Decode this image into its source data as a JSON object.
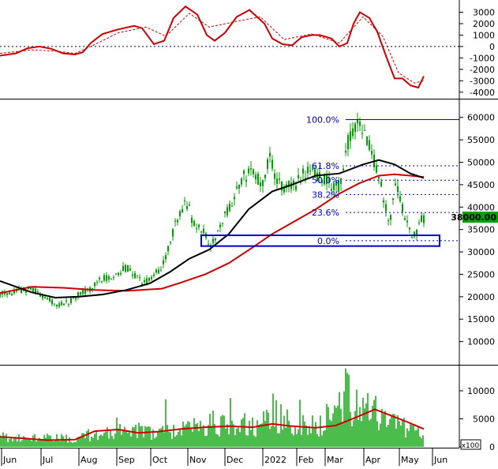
{
  "chart_data": [
    {
      "panel": "oscillator",
      "type": "line",
      "y_ticks": [
        3000,
        2000,
        1000,
        0,
        -1000,
        -2000,
        -3000,
        -4000
      ],
      "y_tick_labels": [
        "3000",
        "2000",
        "1000",
        "0",
        "-1000",
        "-2000",
        "-3000",
        "-4000"
      ],
      "ylim": [
        -4500,
        4000
      ],
      "zero_line": 0,
      "colors": {
        "main": "#cc0000",
        "signal": "#cc0000",
        "zero": "#000080"
      },
      "series": [
        {
          "role": "main",
          "style": "solid",
          "points": [
            [
              0,
              -800
            ],
            [
              20,
              -600
            ],
            [
              35,
              -150
            ],
            [
              50,
              0
            ],
            [
              65,
              -200
            ],
            [
              80,
              -600
            ],
            [
              95,
              -700
            ],
            [
              105,
              -500
            ],
            [
              115,
              300
            ],
            [
              130,
              1100
            ],
            [
              150,
              1500
            ],
            [
              170,
              1800
            ],
            [
              180,
              1600
            ],
            [
              195,
              200
            ],
            [
              208,
              500
            ],
            [
              220,
              2500
            ],
            [
              235,
              3500
            ],
            [
              250,
              2800
            ],
            [
              262,
              1000
            ],
            [
              272,
              500
            ],
            [
              285,
              1200
            ],
            [
              300,
              2600
            ],
            [
              316,
              3200
            ],
            [
              335,
              2000
            ],
            [
              345,
              700
            ],
            [
              358,
              200
            ],
            [
              370,
              100
            ],
            [
              382,
              800
            ],
            [
              395,
              1000
            ],
            [
              405,
              1000
            ],
            [
              420,
              700
            ],
            [
              430,
              0
            ],
            [
              440,
              300
            ],
            [
              448,
              2000
            ],
            [
              456,
              3000
            ],
            [
              468,
              2500
            ],
            [
              478,
              1300
            ],
            [
              490,
              -1000
            ],
            [
              500,
              -2800
            ],
            [
              510,
              -2800
            ],
            [
              520,
              -3400
            ],
            [
              530,
              -3600
            ],
            [
              537,
              -2600
            ]
          ]
        },
        {
          "role": "signal",
          "style": "dashed",
          "points": [
            [
              0,
              -600
            ],
            [
              40,
              -300
            ],
            [
              70,
              -400
            ],
            [
              95,
              -600
            ],
            [
              115,
              0
            ],
            [
              150,
              1200
            ],
            [
              185,
              1700
            ],
            [
              210,
              900
            ],
            [
              240,
              2900
            ],
            [
              265,
              1700
            ],
            [
              300,
              2200
            ],
            [
              330,
              2600
            ],
            [
              360,
              600
            ],
            [
              395,
              1100
            ],
            [
              430,
              300
            ],
            [
              460,
              2600
            ],
            [
              485,
              900
            ],
            [
              505,
              -2300
            ],
            [
              525,
              -3200
            ],
            [
              537,
              -3000
            ]
          ]
        }
      ]
    },
    {
      "panel": "price",
      "type": "candlestick",
      "y_ticks": [
        60000,
        55000,
        50000,
        45000,
        40000,
        35000,
        30000,
        25000,
        20000,
        15000,
        10000
      ],
      "y_tick_labels": [
        "60000",
        "55000",
        "50000",
        "45000",
        "40000",
        "35000",
        "30000",
        "25000",
        "20000",
        "15000",
        "10000"
      ],
      "ylim": [
        5000,
        64000
      ],
      "last_price_label": "38000.00",
      "colors": {
        "candle": "#00a000",
        "ma_fast": "#000000",
        "ma_slow": "#cc0000",
        "fib": "#0000cc",
        "box": "#0000cc",
        "last_price_bg": "#00a000"
      },
      "key_points": [
        [
          0,
          20500
        ],
        [
          20,
          21000
        ],
        [
          40,
          22000
        ],
        [
          60,
          19500
        ],
        [
          75,
          18000
        ],
        [
          90,
          19000
        ],
        [
          100,
          20500
        ],
        [
          115,
          22000
        ],
        [
          130,
          24000
        ],
        [
          145,
          25000
        ],
        [
          160,
          26500
        ],
        [
          170,
          25000
        ],
        [
          180,
          23000
        ],
        [
          195,
          24500
        ],
        [
          205,
          27000
        ],
        [
          212,
          30000
        ],
        [
          220,
          35000
        ],
        [
          228,
          38000
        ],
        [
          236,
          41500
        ],
        [
          244,
          37000
        ],
        [
          252,
          35500
        ],
        [
          260,
          33500
        ],
        [
          268,
          31500
        ],
        [
          276,
          34000
        ],
        [
          284,
          37500
        ],
        [
          292,
          40000
        ],
        [
          300,
          44000
        ],
        [
          310,
          47000
        ],
        [
          320,
          47500
        ],
        [
          332,
          45000
        ],
        [
          342,
          52000
        ],
        [
          350,
          46000
        ],
        [
          360,
          44000
        ],
        [
          370,
          44500
        ],
        [
          380,
          46000
        ],
        [
          390,
          48500
        ],
        [
          400,
          47000
        ],
        [
          410,
          46500
        ],
        [
          420,
          45000
        ],
        [
          430,
          44500
        ],
        [
          435,
          47000
        ],
        [
          440,
          54000
        ],
        [
          448,
          58000
        ],
        [
          456,
          58500
        ],
        [
          464,
          56000
        ],
        [
          470,
          52000
        ],
        [
          476,
          49000
        ],
        [
          482,
          45000
        ],
        [
          488,
          41000
        ],
        [
          494,
          36000
        ],
        [
          500,
          44000
        ],
        [
          506,
          43000
        ],
        [
          512,
          38000
        ],
        [
          518,
          35000
        ],
        [
          522,
          32500
        ],
        [
          527,
          34500
        ],
        [
          532,
          36500
        ],
        [
          538,
          38000
        ]
      ],
      "ma_fast": [
        [
          0,
          23500
        ],
        [
          40,
          21000
        ],
        [
          70,
          19800
        ],
        [
          100,
          20000
        ],
        [
          130,
          20500
        ],
        [
          160,
          21500
        ],
        [
          190,
          23000
        ],
        [
          215,
          25500
        ],
        [
          240,
          28500
        ],
        [
          265,
          30500
        ],
        [
          290,
          34000
        ],
        [
          315,
          39500
        ],
        [
          345,
          43500
        ],
        [
          370,
          45000
        ],
        [
          400,
          47000
        ],
        [
          430,
          47500
        ],
        [
          460,
          49500
        ],
        [
          480,
          50500
        ],
        [
          500,
          49500
        ],
        [
          520,
          47500
        ],
        [
          537,
          46500
        ]
      ],
      "ma_slow": [
        [
          0,
          20800
        ],
        [
          40,
          22200
        ],
        [
          80,
          22000
        ],
        [
          120,
          21500
        ],
        [
          160,
          21300
        ],
        [
          205,
          21800
        ],
        [
          230,
          23200
        ],
        [
          260,
          25000
        ],
        [
          290,
          27500
        ],
        [
          320,
          31000
        ],
        [
          345,
          34000
        ],
        [
          370,
          36500
        ],
        [
          400,
          39500
        ],
        [
          430,
          43000
        ],
        [
          455,
          45300
        ],
        [
          480,
          47000
        ],
        [
          500,
          47300
        ],
        [
          520,
          47000
        ],
        [
          537,
          46700
        ]
      ],
      "fibonacci": [
        {
          "label": "100.0%",
          "price": 59500
        },
        {
          "label": "61.8%",
          "price": 49200
        },
        {
          "label": "50.0%",
          "price": 46000
        },
        {
          "label": "38.2%",
          "price": 42800
        },
        {
          "label": "23.6%",
          "price": 38800
        },
        {
          "label": "0.0%",
          "price": 32500
        }
      ],
      "support_box": {
        "x_from": 255,
        "x_to": 557,
        "price_from": 31300,
        "price_to": 33700
      }
    },
    {
      "panel": "volume",
      "type": "bar",
      "y_ticks": [
        10000,
        5000,
        0
      ],
      "y_tick_labels": [
        "10000",
        "5000",
        "0"
      ],
      "ylim": [
        0,
        14500
      ],
      "unit_label": "x100",
      "colors": {
        "bar": "#00a000",
        "ma": "#cc0000"
      },
      "key_points": [
        [
          0,
          1800
        ],
        [
          40,
          1600
        ],
        [
          80,
          1500
        ],
        [
          100,
          1400
        ],
        [
          120,
          2500
        ],
        [
          160,
          3000
        ],
        [
          200,
          2600
        ],
        [
          240,
          3200
        ],
        [
          270,
          4200
        ],
        [
          300,
          3800
        ],
        [
          330,
          4000
        ],
        [
          345,
          6000
        ],
        [
          370,
          3800
        ],
        [
          400,
          3600
        ],
        [
          430,
          6500
        ],
        [
          438,
          12500
        ],
        [
          448,
          5000
        ],
        [
          470,
          6500
        ],
        [
          490,
          5000
        ],
        [
          510,
          3500
        ],
        [
          530,
          2500
        ],
        [
          537,
          2800
        ]
      ],
      "spikes": [
        [
          148,
          5200
        ],
        [
          210,
          8500
        ],
        [
          238,
          4600
        ],
        [
          292,
          8700
        ],
        [
          345,
          9500
        ],
        [
          380,
          8400
        ],
        [
          405,
          5600
        ],
        [
          438,
          14000
        ],
        [
          452,
          10200
        ],
        [
          466,
          9600
        ],
        [
          486,
          5900
        ]
      ],
      "ma": [
        [
          0,
          1800
        ],
        [
          30,
          1500
        ],
        [
          60,
          1200
        ],
        [
          95,
          1300
        ],
        [
          120,
          2800
        ],
        [
          150,
          3100
        ],
        [
          175,
          2500
        ],
        [
          200,
          2700
        ],
        [
          230,
          3200
        ],
        [
          260,
          3500
        ],
        [
          290,
          3700
        ],
        [
          320,
          3500
        ],
        [
          345,
          4100
        ],
        [
          370,
          3700
        ],
        [
          400,
          3400
        ],
        [
          425,
          3800
        ],
        [
          450,
          5200
        ],
        [
          475,
          6700
        ],
        [
          495,
          5600
        ],
        [
          515,
          4500
        ],
        [
          537,
          3200
        ]
      ]
    }
  ],
  "x_axis": {
    "ticks": [
      {
        "label": "Jun",
        "day": 2
      },
      {
        "label": "Jul",
        "day": 52
      },
      {
        "label": "Aug",
        "day": 100
      },
      {
        "label": "Sep",
        "day": 148
      },
      {
        "label": "Oct",
        "day": 191
      },
      {
        "label": "Nov",
        "day": 238
      },
      {
        "label": "Dec",
        "day": 285
      },
      {
        "label": "2022",
        "day": 333
      },
      {
        "label": "Feb",
        "day": 376
      },
      {
        "label": "Mar",
        "day": 412
      },
      {
        "label": "Apr",
        "day": 461
      },
      {
        "label": "May",
        "day": 506
      },
      {
        "label": "Jun",
        "day": 548
      }
    ]
  }
}
